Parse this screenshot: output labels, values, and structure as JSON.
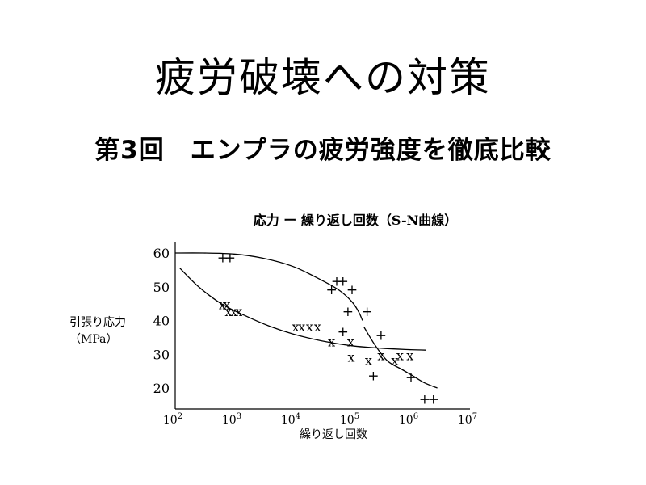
{
  "slide": {
    "title": "疲労破壊への対策",
    "subtitle": "第3回　エンプラの疲労強度を徹底比較"
  },
  "chart_data": {
    "type": "scatter",
    "title": "応力 ー 繰り返し回数（S-N曲線）",
    "xlabel": "繰り返し回数",
    "ylabel": [
      "引張り応力",
      "（MPa）"
    ],
    "x_scale": "log",
    "xlim": [
      100,
      10000000
    ],
    "ylim": [
      15,
      62
    ],
    "x_ticks": [
      {
        "value": 100,
        "base": "10",
        "exp": "2"
      },
      {
        "value": 1000,
        "base": "10",
        "exp": "3"
      },
      {
        "value": 10000,
        "base": "10",
        "exp": "4"
      },
      {
        "value": 100000,
        "base": "10",
        "exp": "5"
      },
      {
        "value": 1000000,
        "base": "10",
        "exp": "6"
      },
      {
        "value": 10000000,
        "base": "10",
        "exp": "7"
      }
    ],
    "y_ticks": [
      {
        "value": 20,
        "label": "20"
      },
      {
        "value": 30,
        "label": "30"
      },
      {
        "value": 40,
        "label": "40"
      },
      {
        "value": 50,
        "label": "50"
      },
      {
        "value": 60,
        "label": "60"
      }
    ],
    "grid": false,
    "legend": "none",
    "series": [
      {
        "marker": "+",
        "points": [
          [
            640,
            58.5
          ],
          [
            850,
            58.5
          ],
          [
            45000,
            49
          ],
          [
            55000,
            51.5
          ],
          [
            70000,
            51.5
          ],
          [
            100000,
            49
          ],
          [
            85000,
            42.5
          ],
          [
            180000,
            42.5
          ],
          [
            70000,
            36.5
          ],
          [
            310000,
            35.5
          ],
          [
            230000,
            23.5
          ],
          [
            1000000,
            23
          ],
          [
            1700000,
            16.5
          ],
          [
            2400000,
            16.5
          ]
        ]
      },
      {
        "marker": "x",
        "points": [
          [
            630,
            44.5
          ],
          [
            750,
            44.5
          ],
          [
            800,
            42.5
          ],
          [
            980,
            42.5
          ],
          [
            1200,
            42.5
          ],
          [
            11000,
            38
          ],
          [
            14000,
            38
          ],
          [
            19000,
            38
          ],
          [
            26000,
            38
          ],
          [
            45000,
            33.5
          ],
          [
            95000,
            33.5
          ],
          [
            97000,
            29
          ],
          [
            190000,
            28
          ],
          [
            310000,
            29.5
          ],
          [
            530000,
            28
          ],
          [
            650000,
            29.5
          ],
          [
            960000,
            29.5
          ]
        ]
      }
    ],
    "curves": [
      {
        "name": "",
        "x": [
          100,
          300,
          1000,
          3000,
          10000,
          30000,
          60000,
          100000,
          130000,
          150000
        ],
        "y": [
          60,
          60,
          59.7,
          58.5,
          56,
          52,
          49,
          45.5,
          42.5,
          40
        ]
      },
      {
        "name": "",
        "x": [
          160000,
          250000,
          400000,
          700000,
          1100000,
          1700000,
          2800000
        ],
        "y": [
          38,
          32.5,
          28,
          25.5,
          23.5,
          21.5,
          20
        ]
      },
      {
        "name": "",
        "x": [
          120,
          250,
          600,
          1500,
          4000,
          10000,
          30000,
          100000,
          300000,
          800000,
          1800000
        ],
        "y": [
          55.5,
          50,
          45,
          41.5,
          38.3,
          36,
          34,
          32.5,
          31.8,
          31.4,
          31.2
        ]
      }
    ]
  }
}
